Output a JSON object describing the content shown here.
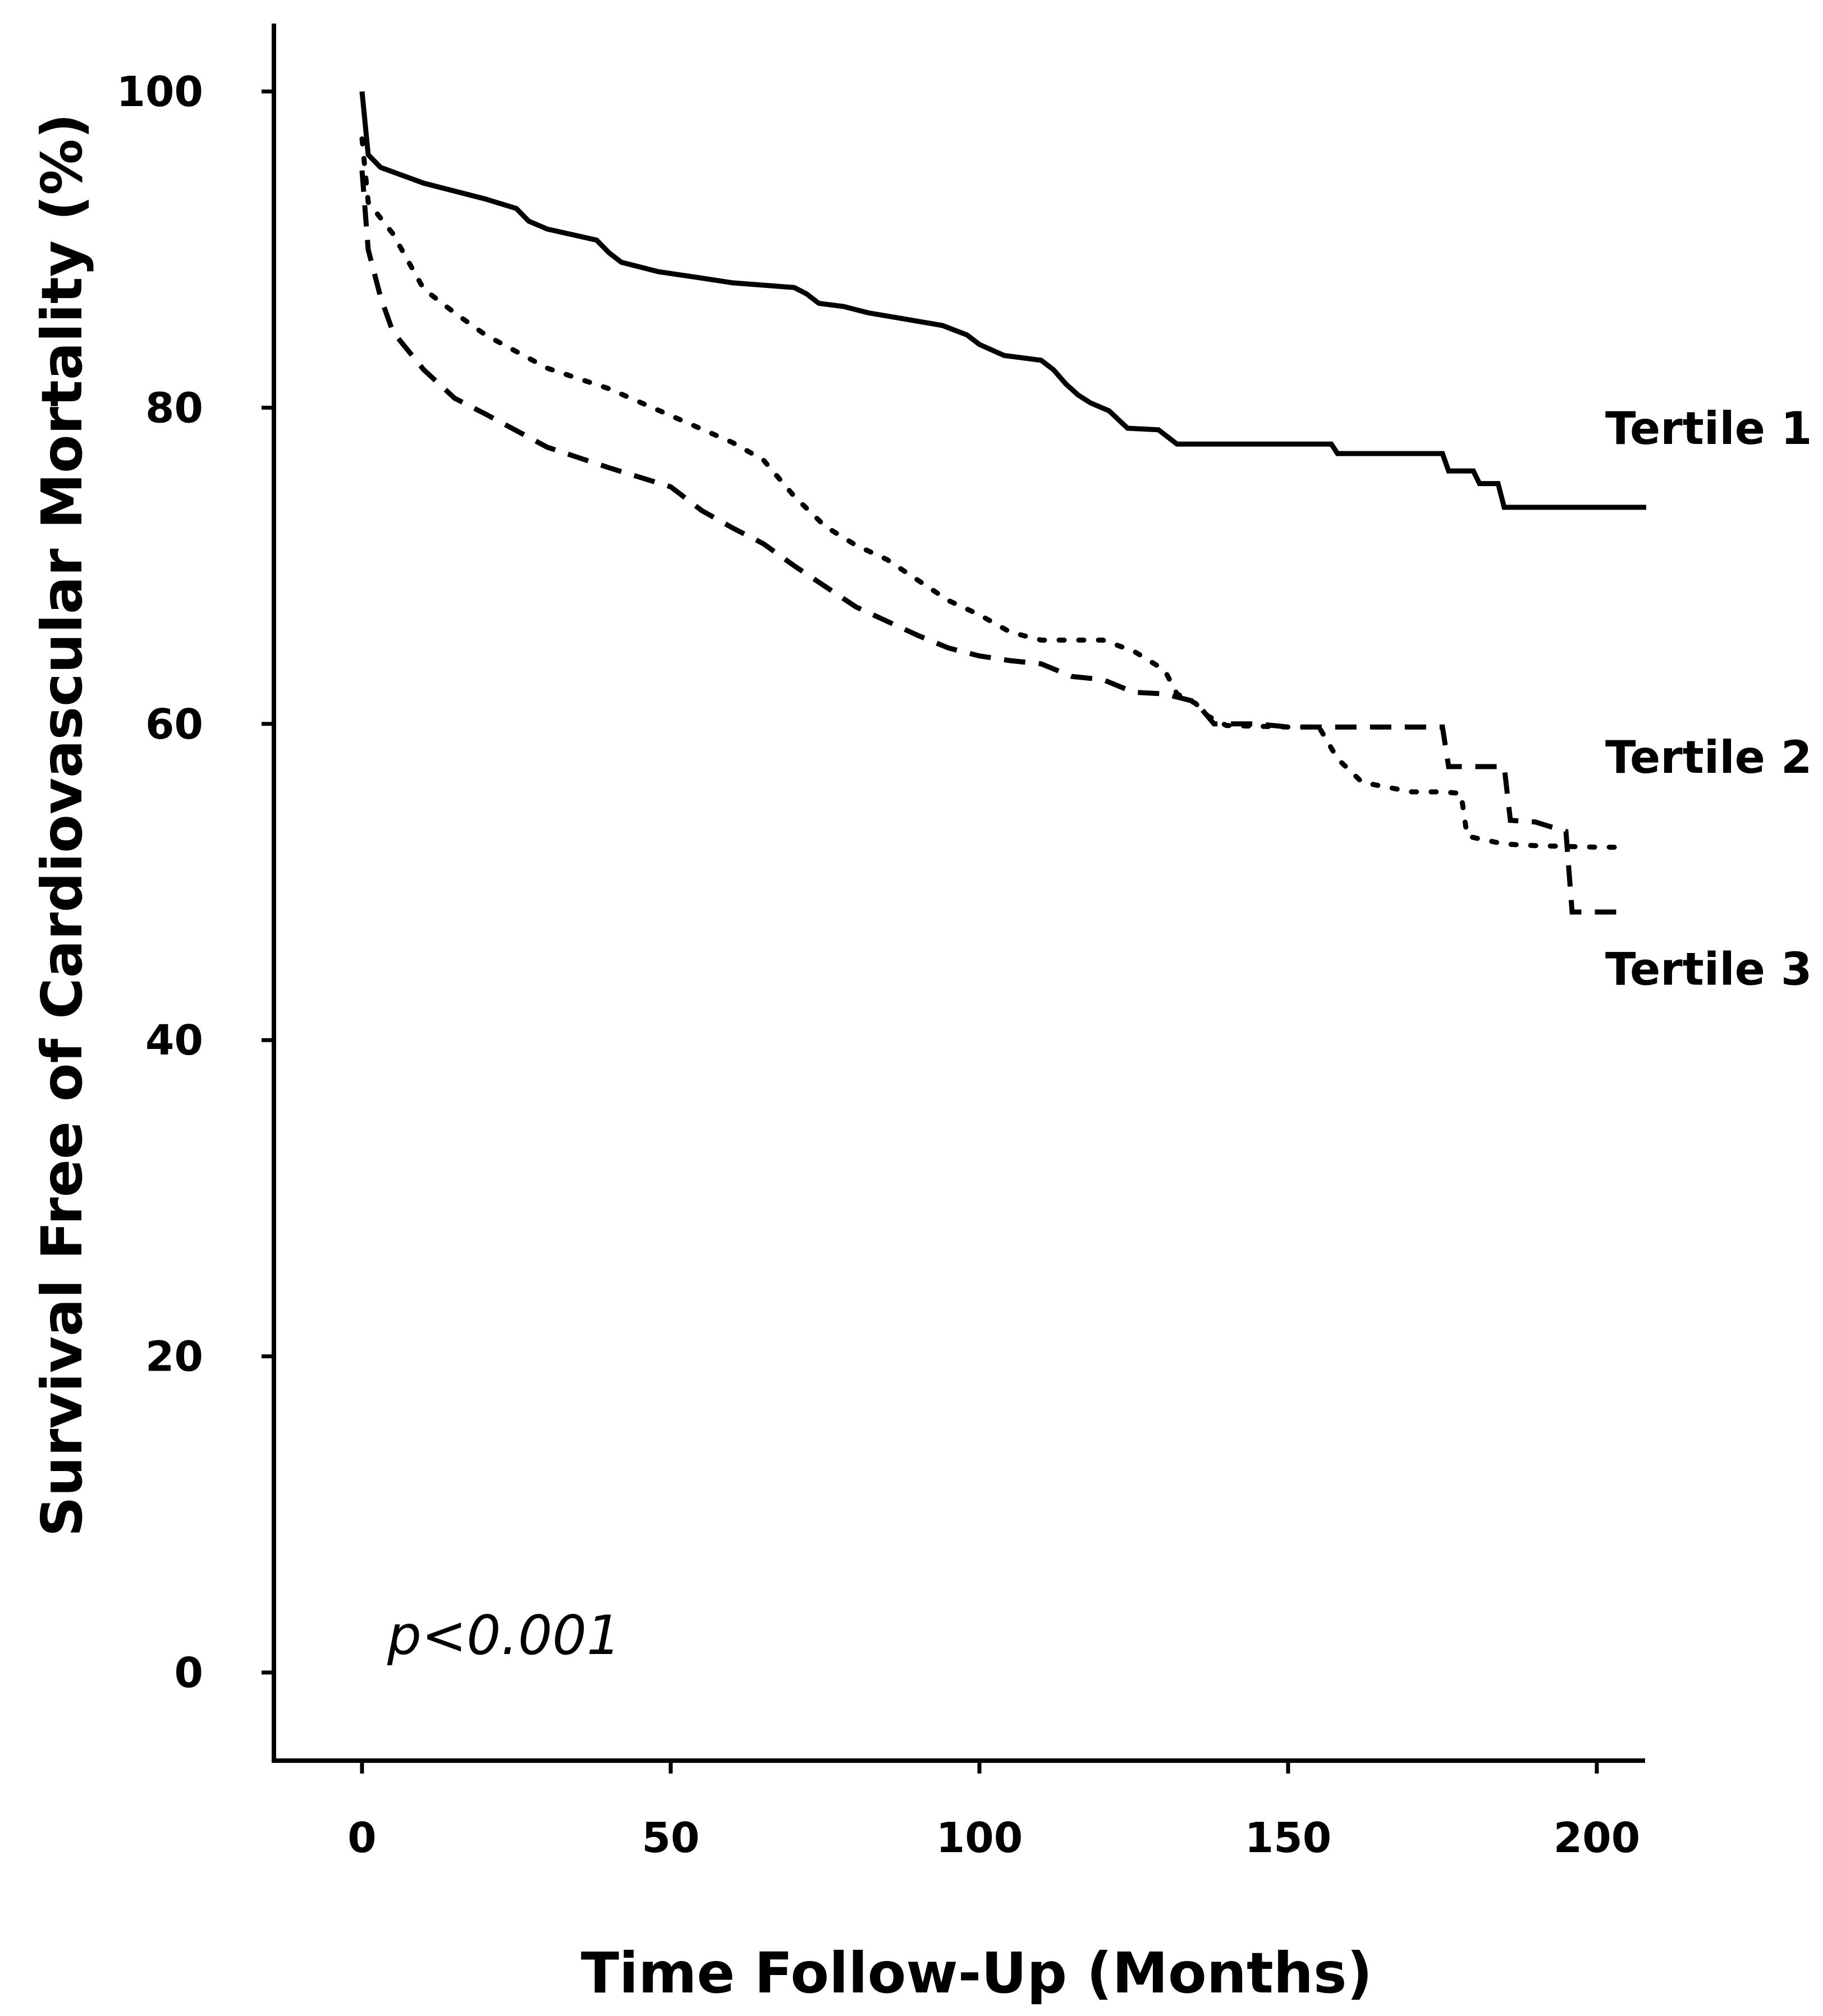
{
  "chart_data": {
    "type": "line",
    "title": "",
    "xlabel": "Time Follow-Up (Months)",
    "ylabel": "Survival Free of Cardiovascular Mortality (%)",
    "xlim": [
      -14,
      208
    ],
    "ylim": [
      -5.5,
      105
    ],
    "x_ticks": [
      0,
      50,
      100,
      150,
      200
    ],
    "y_ticks": [
      0,
      20,
      40,
      60,
      80,
      100
    ],
    "grid": false,
    "annotation": "p<0.001",
    "series": [
      {
        "name": "Tertile 1",
        "style": "solid",
        "label_value_y": 78.7,
        "points": [
          [
            0,
            100
          ],
          [
            1,
            96
          ],
          [
            3,
            95.2
          ],
          [
            10,
            94.2
          ],
          [
            20,
            93.2
          ],
          [
            25,
            92.6
          ],
          [
            27,
            91.8
          ],
          [
            30,
            91.3
          ],
          [
            38,
            90.6
          ],
          [
            40,
            89.8
          ],
          [
            42,
            89.2
          ],
          [
            48,
            88.6
          ],
          [
            55,
            88.2
          ],
          [
            60,
            87.9
          ],
          [
            70,
            87.6
          ],
          [
            72,
            87.2
          ],
          [
            74,
            86.6
          ],
          [
            78,
            86.4
          ],
          [
            82,
            86.0
          ],
          [
            88,
            85.6
          ],
          [
            94,
            85.2
          ],
          [
            98,
            84.6
          ],
          [
            100,
            84.0
          ],
          [
            104,
            83.3
          ],
          [
            110,
            83.0
          ],
          [
            112,
            82.4
          ],
          [
            114,
            81.5
          ],
          [
            116,
            80.8
          ],
          [
            118,
            80.3
          ],
          [
            121,
            79.8
          ],
          [
            124,
            78.7
          ],
          [
            129,
            78.6
          ],
          [
            132,
            77.7
          ],
          [
            140,
            77.7
          ],
          [
            150,
            77.7
          ],
          [
            157,
            77.7
          ],
          [
            158,
            77.1
          ],
          [
            175,
            77.1
          ],
          [
            176,
            76.0
          ],
          [
            180,
            76.0
          ],
          [
            181,
            75.2
          ],
          [
            184,
            75.2
          ],
          [
            185,
            73.7
          ],
          [
            208,
            73.7
          ]
        ]
      },
      {
        "name": "Tertile 2",
        "style": "dotted",
        "label_value_y": 57.9,
        "points": [
          [
            0,
            97
          ],
          [
            1,
            93
          ],
          [
            5,
            91
          ],
          [
            10,
            87.5
          ],
          [
            15,
            86
          ],
          [
            20,
            84.6
          ],
          [
            30,
            82.5
          ],
          [
            40,
            81.2
          ],
          [
            50,
            79.5
          ],
          [
            60,
            77.8
          ],
          [
            65,
            76.7
          ],
          [
            70,
            74.4
          ],
          [
            75,
            72.5
          ],
          [
            80,
            71.3
          ],
          [
            85,
            70.4
          ],
          [
            90,
            69.1
          ],
          [
            95,
            67.8
          ],
          [
            100,
            66.9
          ],
          [
            105,
            65.8
          ],
          [
            110,
            65.3
          ],
          [
            120,
            65.3
          ],
          [
            125,
            64.6
          ],
          [
            130,
            63.4
          ],
          [
            132,
            61.9
          ],
          [
            135,
            61.3
          ],
          [
            137,
            60.5
          ],
          [
            140,
            59.9
          ],
          [
            150,
            59.8
          ],
          [
            155,
            59.8
          ],
          [
            158,
            57.8
          ],
          [
            162,
            56.3
          ],
          [
            170,
            55.7
          ],
          [
            175,
            55.7
          ],
          [
            178,
            55.6
          ],
          [
            179,
            52.9
          ],
          [
            185,
            52.4
          ],
          [
            190,
            52.3
          ],
          [
            200,
            52.2
          ],
          [
            205,
            52.2
          ]
        ]
      },
      {
        "name": "Tertile 3",
        "style": "dashed",
        "label_value_y": 44.5,
        "points": [
          [
            0,
            95
          ],
          [
            1,
            90
          ],
          [
            3,
            87
          ],
          [
            5,
            84.8
          ],
          [
            10,
            82.4
          ],
          [
            15,
            80.6
          ],
          [
            20,
            79.6
          ],
          [
            30,
            77.5
          ],
          [
            40,
            76.2
          ],
          [
            50,
            75.0
          ],
          [
            55,
            73.5
          ],
          [
            60,
            72.4
          ],
          [
            65,
            71.4
          ],
          [
            70,
            70.0
          ],
          [
            75,
            68.7
          ],
          [
            80,
            67.4
          ],
          [
            85,
            66.5
          ],
          [
            90,
            65.6
          ],
          [
            95,
            64.8
          ],
          [
            100,
            64.3
          ],
          [
            105,
            64.0
          ],
          [
            110,
            63.8
          ],
          [
            115,
            63.0
          ],
          [
            120,
            62.8
          ],
          [
            125,
            62.0
          ],
          [
            130,
            61.9
          ],
          [
            135,
            61.4
          ],
          [
            138,
            60.0
          ],
          [
            145,
            60.0
          ],
          [
            150,
            59.8
          ],
          [
            160,
            59.8
          ],
          [
            175,
            59.8
          ],
          [
            176,
            57.3
          ],
          [
            185,
            57.3
          ],
          [
            186,
            53.9
          ],
          [
            190,
            53.8
          ],
          [
            195,
            53.2
          ],
          [
            196,
            48.1
          ],
          [
            205,
            48.1
          ]
        ]
      }
    ]
  }
}
